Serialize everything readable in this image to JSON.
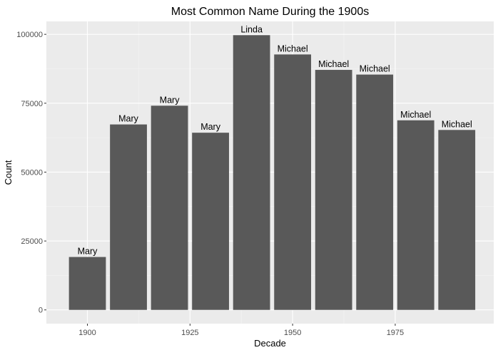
{
  "colors": {
    "panel_background": "#ebebeb",
    "major_grid": "#ffffff",
    "minor_grid": "#f5f5f5",
    "bar_fill": "#595959",
    "tick_text": "#4d4d4d",
    "text": "#000000"
  },
  "chart_data": {
    "type": "bar",
    "title": "Most Common Name During the 1900s",
    "xlabel": "Decade",
    "ylabel": "Count",
    "x": [
      1900,
      1910,
      1920,
      1930,
      1940,
      1950,
      1960,
      1970,
      1980,
      1990
    ],
    "values": [
      19200,
      67300,
      74100,
      64300,
      99700,
      92700,
      87100,
      85400,
      68800,
      65300
    ],
    "labels": [
      "Mary",
      "Mary",
      "Mary",
      "Mary",
      "Linda",
      "Michael",
      "Michael",
      "Michael",
      "Michael",
      "Michael"
    ],
    "xlim": [
      1890,
      1999
    ],
    "ylim": [
      -4985,
      104700
    ],
    "x_ticks": [
      1900,
      1925,
      1950,
      1975
    ],
    "x_tick_labels": [
      "1900",
      "1925",
      "1950",
      "1975"
    ],
    "y_ticks": [
      0,
      25000,
      50000,
      75000,
      100000
    ],
    "y_tick_labels": [
      "0",
      "25000",
      "50000",
      "75000",
      "100000"
    ],
    "bar_width": 9,
    "grid": true,
    "legend": "none"
  }
}
